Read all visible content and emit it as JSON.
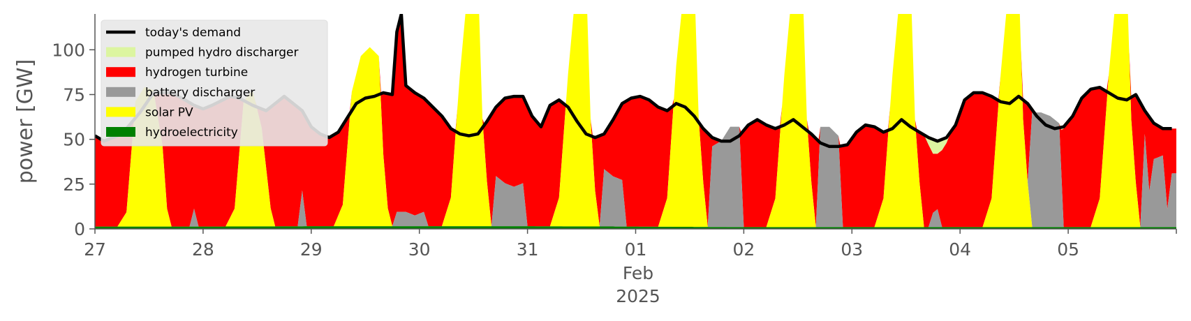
{
  "chart_data": {
    "type": "area",
    "title": "",
    "ylabel": "power [GW]",
    "ylim": [
      0,
      120
    ],
    "yticks": [
      0,
      25,
      50,
      75,
      100
    ],
    "xlim": [
      0,
      240
    ],
    "x_unit": "hours since 2025-01-27 00:00",
    "x_tick_labels": [
      {
        "x": 0,
        "label": "27"
      },
      {
        "x": 24,
        "label": "28"
      },
      {
        "x": 48,
        "label": "29"
      },
      {
        "x": 72,
        "label": "30"
      },
      {
        "x": 96,
        "label": "31"
      },
      {
        "x": 120,
        "label": "01"
      },
      {
        "x": 144,
        "label": "02"
      },
      {
        "x": 168,
        "label": "03"
      },
      {
        "x": 192,
        "label": "04"
      },
      {
        "x": 216,
        "label": "05"
      }
    ],
    "x_sublabels": {
      "x": 120,
      "month": "Feb",
      "year": "2025"
    },
    "grid": false,
    "legend": {
      "placement": "top-left"
    },
    "legend_order": [
      "demand",
      "pumped",
      "hydrogen",
      "battery",
      "solar",
      "hydro"
    ],
    "demand": {
      "name": "today's demand",
      "color": "#000000",
      "points": [
        [
          0,
          52
        ],
        [
          2,
          49
        ],
        [
          6,
          53
        ],
        [
          10,
          65
        ],
        [
          13,
          76
        ],
        [
          17,
          76
        ],
        [
          20,
          72
        ],
        [
          22,
          69
        ],
        [
          24,
          67
        ],
        [
          26,
          69
        ],
        [
          30,
          74
        ],
        [
          32,
          73
        ],
        [
          35,
          69
        ],
        [
          38,
          66
        ],
        [
          40,
          70
        ],
        [
          42,
          74
        ],
        [
          46,
          66
        ],
        [
          48,
          57
        ],
        [
          50,
          53
        ],
        [
          52,
          51
        ],
        [
          54,
          54
        ],
        [
          56,
          62
        ],
        [
          58,
          70
        ],
        [
          60,
          73
        ],
        [
          62,
          74
        ],
        [
          64,
          76
        ],
        [
          66,
          75
        ],
        [
          67,
          110
        ],
        [
          68,
          120
        ],
        [
          69,
          80
        ],
        [
          71,
          76
        ],
        [
          73,
          73
        ],
        [
          75,
          68
        ],
        [
          77,
          63
        ],
        [
          79,
          56
        ],
        [
          81,
          53
        ],
        [
          83,
          52
        ],
        [
          85,
          53
        ],
        [
          87,
          60
        ],
        [
          89,
          68
        ],
        [
          91,
          73
        ],
        [
          93,
          74
        ],
        [
          95,
          74
        ],
        [
          97,
          63
        ],
        [
          99,
          57
        ],
        [
          101,
          69
        ],
        [
          103,
          72
        ],
        [
          105,
          68
        ],
        [
          107,
          60
        ],
        [
          109,
          53
        ],
        [
          111,
          51
        ],
        [
          113,
          53
        ],
        [
          115,
          61
        ],
        [
          117,
          70
        ],
        [
          119,
          73
        ],
        [
          121,
          74
        ],
        [
          123,
          72
        ],
        [
          125,
          68
        ],
        [
          127,
          66
        ],
        [
          129,
          70
        ],
        [
          131,
          68
        ],
        [
          133,
          63
        ],
        [
          135,
          56
        ],
        [
          137,
          51
        ],
        [
          139,
          49
        ],
        [
          141,
          49
        ],
        [
          143,
          52
        ],
        [
          145,
          58
        ],
        [
          147,
          61
        ],
        [
          149,
          58
        ],
        [
          151,
          56
        ],
        [
          153,
          58
        ],
        [
          155,
          61
        ],
        [
          157,
          57
        ],
        [
          159,
          53
        ],
        [
          161,
          48
        ],
        [
          163,
          46
        ],
        [
          165,
          46
        ],
        [
          167,
          47
        ],
        [
          169,
          54
        ],
        [
          171,
          58
        ],
        [
          173,
          57
        ],
        [
          175,
          54
        ],
        [
          177,
          56
        ],
        [
          179,
          61
        ],
        [
          181,
          57
        ],
        [
          183,
          54
        ],
        [
          185,
          51
        ],
        [
          187,
          49
        ],
        [
          189,
          51
        ],
        [
          191,
          58
        ],
        [
          193,
          72
        ],
        [
          195,
          76
        ],
        [
          197,
          76
        ],
        [
          199,
          74
        ],
        [
          201,
          71
        ],
        [
          203,
          70
        ],
        [
          205,
          74
        ],
        [
          207,
          70
        ],
        [
          209,
          63
        ],
        [
          211,
          58
        ],
        [
          213,
          56
        ],
        [
          215,
          57
        ],
        [
          217,
          63
        ],
        [
          219,
          73
        ],
        [
          221,
          78
        ],
        [
          223,
          79
        ],
        [
          225,
          76
        ],
        [
          227,
          73
        ],
        [
          229,
          72
        ],
        [
          231,
          75
        ],
        [
          233,
          66
        ],
        [
          235,
          59
        ],
        [
          237,
          56
        ],
        [
          239,
          56
        ]
      ]
    },
    "series": [
      {
        "name": "hydroelectricity",
        "color": "#008000",
        "points": [
          [
            0,
            1.3
          ],
          [
            24,
            1.3
          ],
          [
            48,
            1.5
          ],
          [
            72,
            1.5
          ],
          [
            96,
            1.5
          ],
          [
            120,
            1.3
          ],
          [
            144,
            1.0
          ],
          [
            168,
            1.0
          ],
          [
            192,
            1.0
          ],
          [
            216,
            1.0
          ],
          [
            240,
            1.0
          ]
        ]
      },
      {
        "name": "solar PV",
        "color": "#ffff00",
        "points": [
          [
            0,
            0
          ],
          [
            5,
            0
          ],
          [
            7,
            8
          ],
          [
            9,
            70
          ],
          [
            11,
            78
          ],
          [
            13,
            76
          ],
          [
            15,
            45
          ],
          [
            16,
            10
          ],
          [
            17,
            0
          ],
          [
            29,
            0
          ],
          [
            31,
            10
          ],
          [
            33,
            70
          ],
          [
            35,
            76
          ],
          [
            37,
            55
          ],
          [
            39,
            10
          ],
          [
            40,
            0
          ],
          [
            53,
            0
          ],
          [
            55,
            12
          ],
          [
            57,
            75
          ],
          [
            59,
            95
          ],
          [
            61,
            100
          ],
          [
            63,
            95
          ],
          [
            64,
            40
          ],
          [
            65,
            10
          ],
          [
            66,
            0
          ],
          [
            77,
            0
          ],
          [
            79,
            16
          ],
          [
            81,
            85
          ],
          [
            83,
            140
          ],
          [
            85,
            140
          ],
          [
            86,
            60
          ],
          [
            87,
            25
          ],
          [
            88,
            0
          ],
          [
            101,
            0
          ],
          [
            103,
            16
          ],
          [
            105,
            85
          ],
          [
            107,
            140
          ],
          [
            109,
            140
          ],
          [
            110,
            60
          ],
          [
            111,
            20
          ],
          [
            112,
            0
          ],
          [
            125,
            0
          ],
          [
            127,
            16
          ],
          [
            129,
            90
          ],
          [
            131,
            140
          ],
          [
            133,
            140
          ],
          [
            134,
            60
          ],
          [
            135,
            25
          ],
          [
            136,
            0
          ],
          [
            149,
            0
          ],
          [
            151,
            16
          ],
          [
            153,
            85
          ],
          [
            155,
            140
          ],
          [
            157,
            140
          ],
          [
            158,
            60
          ],
          [
            159,
            25
          ],
          [
            160,
            0
          ],
          [
            173,
            0
          ],
          [
            175,
            16
          ],
          [
            177,
            85
          ],
          [
            179,
            140
          ],
          [
            181,
            140
          ],
          [
            182,
            60
          ],
          [
            183,
            25
          ],
          [
            184,
            0
          ],
          [
            197,
            0
          ],
          [
            199,
            16
          ],
          [
            201,
            85
          ],
          [
            203,
            140
          ],
          [
            205,
            140
          ],
          [
            206,
            60
          ],
          [
            207,
            25
          ],
          [
            208,
            0
          ],
          [
            221,
            0
          ],
          [
            223,
            16
          ],
          [
            225,
            85
          ],
          [
            227,
            140
          ],
          [
            229,
            140
          ],
          [
            230,
            60
          ],
          [
            231,
            25
          ],
          [
            232,
            0
          ],
          [
            240,
            0
          ]
        ]
      },
      {
        "name": "battery discharger",
        "color": "#999999",
        "points": [
          [
            0,
            0
          ],
          [
            21,
            0
          ],
          [
            22,
            10
          ],
          [
            23,
            0
          ],
          [
            45,
            0
          ],
          [
            46,
            20
          ],
          [
            47,
            0
          ],
          [
            66,
            0
          ],
          [
            67,
            8
          ],
          [
            69,
            8
          ],
          [
            71,
            6
          ],
          [
            73,
            8
          ],
          [
            74,
            0
          ],
          [
            88,
            0
          ],
          [
            89,
            28
          ],
          [
            91,
            24
          ],
          [
            93,
            22
          ],
          [
            95,
            24
          ],
          [
            96,
            0
          ],
          [
            112,
            0
          ],
          [
            113,
            32
          ],
          [
            115,
            28
          ],
          [
            117,
            26
          ],
          [
            118,
            0
          ],
          [
            136,
            0
          ],
          [
            137,
            45
          ],
          [
            139,
            48
          ],
          [
            141,
            56
          ],
          [
            143,
            56
          ],
          [
            144,
            0
          ],
          [
            160,
            0
          ],
          [
            161,
            56
          ],
          [
            163,
            56
          ],
          [
            165,
            51
          ],
          [
            166,
            0
          ],
          [
            185,
            0
          ],
          [
            186,
            8
          ],
          [
            187,
            10
          ],
          [
            188,
            0
          ],
          [
            207,
            0
          ],
          [
            208,
            64
          ],
          [
            210,
            64
          ],
          [
            212,
            62
          ],
          [
            214,
            58
          ],
          [
            215,
            0
          ],
          [
            232,
            0
          ],
          [
            233,
            52
          ],
          [
            234,
            20
          ],
          [
            235,
            38
          ],
          [
            237,
            40
          ],
          [
            238,
            10
          ],
          [
            239,
            30
          ],
          [
            240,
            30
          ]
        ]
      },
      {
        "name": "hydrogen turbine",
        "color": "#ff0000",
        "fill_to": "demand"
      },
      {
        "name": "pumped hydro discharger",
        "color": "#dcf5a0",
        "points": [
          [
            0,
            0
          ],
          [
            160,
            0
          ],
          [
            162,
            4
          ],
          [
            164,
            2
          ],
          [
            166,
            0
          ],
          [
            184,
            0
          ],
          [
            186,
            8
          ],
          [
            188,
            6
          ],
          [
            190,
            0
          ],
          [
            210,
            0
          ],
          [
            212,
            4
          ],
          [
            214,
            2
          ],
          [
            216,
            0
          ],
          [
            240,
            0
          ]
        ]
      }
    ]
  }
}
